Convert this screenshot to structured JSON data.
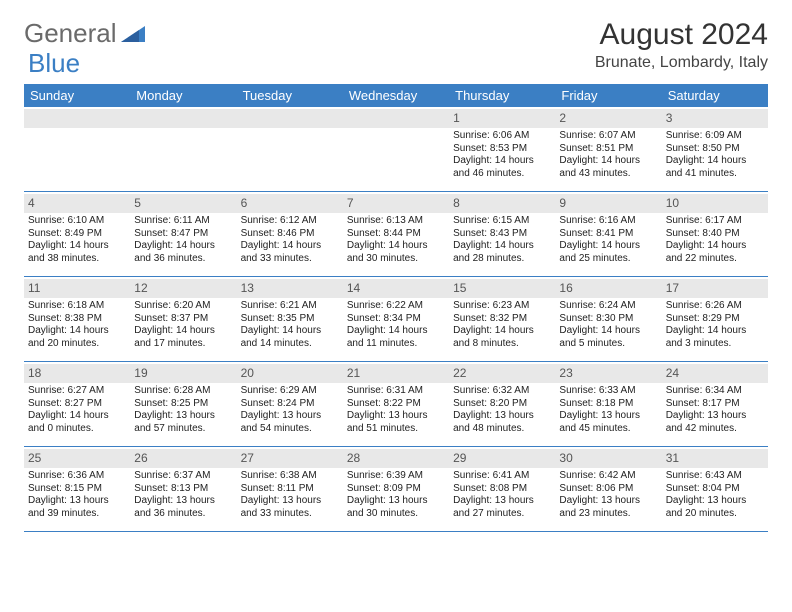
{
  "logo": {
    "text1": "General",
    "text2": "Blue"
  },
  "title": "August 2024",
  "location": "Brunate, Lombardy, Italy",
  "colors": {
    "header_bg": "#3b7fc4",
    "header_text": "#ffffff",
    "daynum_bg": "#e8e8e8",
    "text": "#222222",
    "logo_gray": "#6a6a6a",
    "logo_blue": "#3b7fc4",
    "divider": "#3b7fc4"
  },
  "day_names": [
    "Sunday",
    "Monday",
    "Tuesday",
    "Wednesday",
    "Thursday",
    "Friday",
    "Saturday"
  ],
  "weeks": [
    [
      {
        "n": "",
        "sr": "",
        "ss": "",
        "dl": ""
      },
      {
        "n": "",
        "sr": "",
        "ss": "",
        "dl": ""
      },
      {
        "n": "",
        "sr": "",
        "ss": "",
        "dl": ""
      },
      {
        "n": "",
        "sr": "",
        "ss": "",
        "dl": ""
      },
      {
        "n": "1",
        "sr": "Sunrise: 6:06 AM",
        "ss": "Sunset: 8:53 PM",
        "dl": "Daylight: 14 hours and 46 minutes."
      },
      {
        "n": "2",
        "sr": "Sunrise: 6:07 AM",
        "ss": "Sunset: 8:51 PM",
        "dl": "Daylight: 14 hours and 43 minutes."
      },
      {
        "n": "3",
        "sr": "Sunrise: 6:09 AM",
        "ss": "Sunset: 8:50 PM",
        "dl": "Daylight: 14 hours and 41 minutes."
      }
    ],
    [
      {
        "n": "4",
        "sr": "Sunrise: 6:10 AM",
        "ss": "Sunset: 8:49 PM",
        "dl": "Daylight: 14 hours and 38 minutes."
      },
      {
        "n": "5",
        "sr": "Sunrise: 6:11 AM",
        "ss": "Sunset: 8:47 PM",
        "dl": "Daylight: 14 hours and 36 minutes."
      },
      {
        "n": "6",
        "sr": "Sunrise: 6:12 AM",
        "ss": "Sunset: 8:46 PM",
        "dl": "Daylight: 14 hours and 33 minutes."
      },
      {
        "n": "7",
        "sr": "Sunrise: 6:13 AM",
        "ss": "Sunset: 8:44 PM",
        "dl": "Daylight: 14 hours and 30 minutes."
      },
      {
        "n": "8",
        "sr": "Sunrise: 6:15 AM",
        "ss": "Sunset: 8:43 PM",
        "dl": "Daylight: 14 hours and 28 minutes."
      },
      {
        "n": "9",
        "sr": "Sunrise: 6:16 AM",
        "ss": "Sunset: 8:41 PM",
        "dl": "Daylight: 14 hours and 25 minutes."
      },
      {
        "n": "10",
        "sr": "Sunrise: 6:17 AM",
        "ss": "Sunset: 8:40 PM",
        "dl": "Daylight: 14 hours and 22 minutes."
      }
    ],
    [
      {
        "n": "11",
        "sr": "Sunrise: 6:18 AM",
        "ss": "Sunset: 8:38 PM",
        "dl": "Daylight: 14 hours and 20 minutes."
      },
      {
        "n": "12",
        "sr": "Sunrise: 6:20 AM",
        "ss": "Sunset: 8:37 PM",
        "dl": "Daylight: 14 hours and 17 minutes."
      },
      {
        "n": "13",
        "sr": "Sunrise: 6:21 AM",
        "ss": "Sunset: 8:35 PM",
        "dl": "Daylight: 14 hours and 14 minutes."
      },
      {
        "n": "14",
        "sr": "Sunrise: 6:22 AM",
        "ss": "Sunset: 8:34 PM",
        "dl": "Daylight: 14 hours and 11 minutes."
      },
      {
        "n": "15",
        "sr": "Sunrise: 6:23 AM",
        "ss": "Sunset: 8:32 PM",
        "dl": "Daylight: 14 hours and 8 minutes."
      },
      {
        "n": "16",
        "sr": "Sunrise: 6:24 AM",
        "ss": "Sunset: 8:30 PM",
        "dl": "Daylight: 14 hours and 5 minutes."
      },
      {
        "n": "17",
        "sr": "Sunrise: 6:26 AM",
        "ss": "Sunset: 8:29 PM",
        "dl": "Daylight: 14 hours and 3 minutes."
      }
    ],
    [
      {
        "n": "18",
        "sr": "Sunrise: 6:27 AM",
        "ss": "Sunset: 8:27 PM",
        "dl": "Daylight: 14 hours and 0 minutes."
      },
      {
        "n": "19",
        "sr": "Sunrise: 6:28 AM",
        "ss": "Sunset: 8:25 PM",
        "dl": "Daylight: 13 hours and 57 minutes."
      },
      {
        "n": "20",
        "sr": "Sunrise: 6:29 AM",
        "ss": "Sunset: 8:24 PM",
        "dl": "Daylight: 13 hours and 54 minutes."
      },
      {
        "n": "21",
        "sr": "Sunrise: 6:31 AM",
        "ss": "Sunset: 8:22 PM",
        "dl": "Daylight: 13 hours and 51 minutes."
      },
      {
        "n": "22",
        "sr": "Sunrise: 6:32 AM",
        "ss": "Sunset: 8:20 PM",
        "dl": "Daylight: 13 hours and 48 minutes."
      },
      {
        "n": "23",
        "sr": "Sunrise: 6:33 AM",
        "ss": "Sunset: 8:18 PM",
        "dl": "Daylight: 13 hours and 45 minutes."
      },
      {
        "n": "24",
        "sr": "Sunrise: 6:34 AM",
        "ss": "Sunset: 8:17 PM",
        "dl": "Daylight: 13 hours and 42 minutes."
      }
    ],
    [
      {
        "n": "25",
        "sr": "Sunrise: 6:36 AM",
        "ss": "Sunset: 8:15 PM",
        "dl": "Daylight: 13 hours and 39 minutes."
      },
      {
        "n": "26",
        "sr": "Sunrise: 6:37 AM",
        "ss": "Sunset: 8:13 PM",
        "dl": "Daylight: 13 hours and 36 minutes."
      },
      {
        "n": "27",
        "sr": "Sunrise: 6:38 AM",
        "ss": "Sunset: 8:11 PM",
        "dl": "Daylight: 13 hours and 33 minutes."
      },
      {
        "n": "28",
        "sr": "Sunrise: 6:39 AM",
        "ss": "Sunset: 8:09 PM",
        "dl": "Daylight: 13 hours and 30 minutes."
      },
      {
        "n": "29",
        "sr": "Sunrise: 6:41 AM",
        "ss": "Sunset: 8:08 PM",
        "dl": "Daylight: 13 hours and 27 minutes."
      },
      {
        "n": "30",
        "sr": "Sunrise: 6:42 AM",
        "ss": "Sunset: 8:06 PM",
        "dl": "Daylight: 13 hours and 23 minutes."
      },
      {
        "n": "31",
        "sr": "Sunrise: 6:43 AM",
        "ss": "Sunset: 8:04 PM",
        "dl": "Daylight: 13 hours and 20 minutes."
      }
    ]
  ]
}
